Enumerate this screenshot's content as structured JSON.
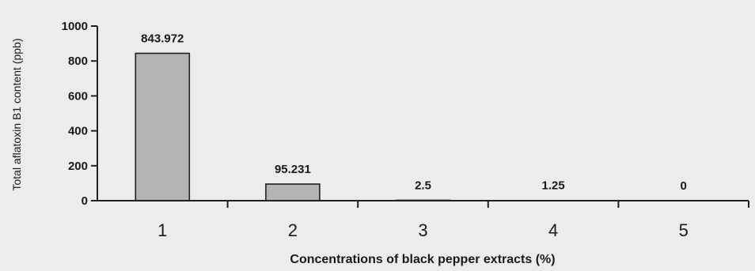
{
  "chart_data": {
    "type": "bar",
    "categories": [
      "1",
      "2",
      "3",
      "4",
      "5"
    ],
    "values": [
      843.972,
      95.231,
      2.5,
      1.25,
      0
    ],
    "data_labels": [
      "843.972",
      "95.231",
      "2.5",
      "1.25",
      "0"
    ],
    "title": "",
    "xlabel": "Concentrations of black pepper extracts (%)",
    "ylabel": "Total aflatoxin B1 content (ppb)",
    "ylim": [
      0,
      1000
    ],
    "yticks": [
      0,
      200,
      400,
      600,
      800,
      1000
    ],
    "grid": false,
    "legend": "none",
    "colors": {
      "bar": "#b4b4b4",
      "edge": "#202020"
    }
  }
}
